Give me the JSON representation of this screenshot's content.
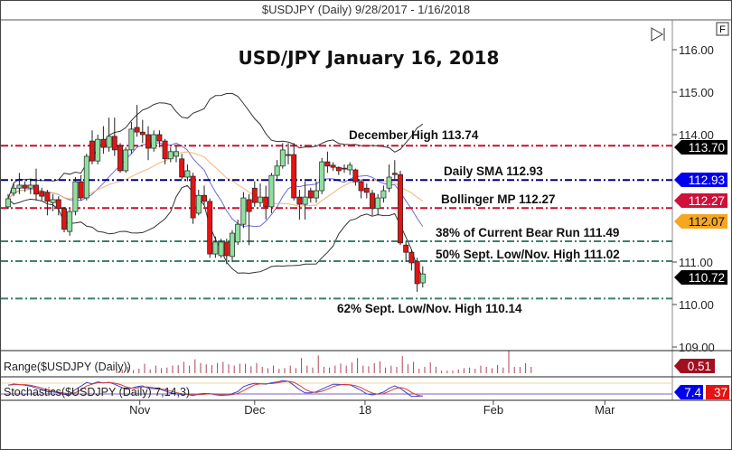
{
  "header": {
    "title": "$USDJPY (Daily)  9/28/2017 - 1/16/2018",
    "f_button": "F"
  },
  "chart_data": {
    "type": "candlestick",
    "title": "USD/JPY January 16, 2018",
    "ohlc": [
      [
        112.3,
        112.6,
        112.25,
        112.49
      ],
      [
        112.62,
        112.85,
        112.55,
        112.74
      ],
      [
        112.74,
        113.1,
        112.6,
        112.81
      ],
      [
        112.81,
        112.9,
        112.65,
        112.74
      ],
      [
        112.74,
        112.95,
        112.6,
        112.81
      ],
      [
        112.81,
        113.2,
        112.45,
        112.6
      ],
      [
        112.66,
        112.75,
        112.45,
        112.55
      ],
      [
        112.64,
        112.7,
        112.1,
        112.43
      ],
      [
        112.4,
        112.6,
        112.2,
        112.47
      ],
      [
        112.47,
        112.55,
        112.1,
        112.26
      ],
      [
        112.26,
        112.3,
        111.7,
        111.77
      ],
      [
        111.72,
        112.25,
        111.62,
        112.19
      ],
      [
        112.19,
        113.0,
        112.1,
        112.89
      ],
      [
        112.89,
        113.05,
        112.45,
        112.51
      ],
      [
        112.51,
        113.55,
        112.45,
        113.49
      ],
      [
        113.85,
        114.1,
        113.3,
        113.38
      ],
      [
        113.38,
        114.0,
        113.3,
        113.89
      ],
      [
        113.89,
        114.2,
        113.55,
        113.7
      ],
      [
        113.7,
        114.4,
        113.6,
        113.96
      ],
      [
        113.96,
        114.4,
        113.5,
        113.64
      ],
      [
        113.74,
        113.8,
        113.1,
        113.15
      ],
      [
        113.15,
        113.7,
        113.1,
        113.64
      ],
      [
        113.64,
        114.3,
        113.55,
        114.13
      ],
      [
        114.17,
        114.7,
        113.95,
        114.06
      ],
      [
        114.06,
        114.35,
        113.8,
        114.0
      ],
      [
        114.0,
        114.2,
        113.4,
        113.68
      ],
      [
        113.68,
        114.1,
        113.6,
        114.0
      ],
      [
        114.0,
        114.1,
        113.7,
        113.85
      ],
      [
        113.85,
        113.9,
        113.3,
        113.43
      ],
      [
        113.43,
        113.7,
        113.35,
        113.6
      ],
      [
        113.49,
        113.75,
        113.35,
        113.6
      ],
      [
        113.43,
        113.55,
        112.95,
        113.0
      ],
      [
        113.0,
        113.3,
        112.9,
        113.15
      ],
      [
        113.02,
        113.1,
        111.9,
        112.04
      ],
      [
        112.15,
        112.7,
        112.1,
        112.57
      ],
      [
        112.57,
        112.8,
        112.35,
        112.43
      ],
      [
        112.43,
        112.5,
        111.1,
        111.19
      ],
      [
        111.19,
        111.6,
        111.1,
        111.47
      ],
      [
        111.15,
        111.55,
        111.1,
        111.47
      ],
      [
        111.47,
        111.55,
        110.95,
        111.15
      ],
      [
        111.13,
        111.75,
        111.0,
        111.68
      ],
      [
        111.47,
        112.0,
        111.4,
        111.89
      ],
      [
        111.89,
        112.65,
        111.8,
        112.51
      ],
      [
        112.47,
        112.6,
        111.4,
        112.19
      ],
      [
        112.74,
        112.9,
        112.3,
        112.4
      ],
      [
        112.4,
        112.85,
        112.3,
        112.53
      ],
      [
        112.53,
        112.8,
        112.0,
        112.3
      ],
      [
        112.3,
        113.1,
        112.15,
        113.04
      ],
      [
        113.04,
        113.4,
        112.95,
        113.26
      ],
      [
        113.26,
        113.8,
        113.2,
        113.64
      ],
      [
        113.53,
        113.8,
        113.3,
        113.51
      ],
      [
        113.53,
        113.8,
        112.45,
        112.51
      ],
      [
        112.53,
        112.7,
        112.0,
        112.36
      ],
      [
        112.36,
        112.9,
        112.0,
        112.53
      ],
      [
        112.68,
        112.75,
        112.4,
        112.51
      ],
      [
        112.51,
        112.9,
        112.4,
        112.68
      ],
      [
        112.68,
        113.45,
        112.6,
        113.36
      ],
      [
        113.36,
        113.6,
        113.1,
        113.26
      ],
      [
        113.28,
        113.35,
        113.15,
        113.23
      ],
      [
        113.23,
        113.25,
        113.05,
        113.15
      ],
      [
        113.21,
        113.3,
        113.1,
        113.19
      ],
      [
        113.17,
        113.35,
        113.05,
        113.28
      ],
      [
        113.17,
        113.2,
        112.8,
        112.89
      ],
      [
        112.89,
        112.95,
        112.5,
        112.68
      ],
      [
        112.74,
        112.85,
        112.5,
        112.64
      ],
      [
        112.62,
        112.7,
        112.1,
        112.26
      ],
      [
        112.26,
        112.6,
        112.1,
        112.51
      ],
      [
        112.51,
        112.8,
        112.4,
        112.68
      ],
      [
        112.74,
        113.3,
        112.65,
        113.0
      ],
      [
        113.09,
        113.4,
        112.95,
        113.06
      ],
      [
        113.06,
        113.15,
        111.4,
        111.45
      ],
      [
        111.4,
        111.5,
        111.0,
        111.23
      ],
      [
        111.23,
        111.3,
        110.8,
        110.98
      ],
      [
        111.02,
        111.1,
        110.3,
        110.49
      ],
      [
        110.51,
        110.9,
        110.4,
        110.72
      ]
    ],
    "ylim": [
      109,
      116.6
    ],
    "y_ticks": [
      "116.00",
      "115.00",
      "114.00",
      "111.00",
      "110.00",
      "109.00"
    ],
    "x_ticks": [
      {
        "label": "Nov",
        "index": 23.5
      },
      {
        "label": "Dec",
        "index": 44
      },
      {
        "label": "18",
        "index": 63.7
      },
      {
        "label": "Feb",
        "index": 86.6
      },
      {
        "label": "Mar",
        "index": 106.5
      }
    ],
    "levels": [
      {
        "label": "December High 113.74",
        "price": 113.74,
        "color": "#c8102e"
      },
      {
        "label": "Daily SMA 112.93",
        "price": 112.93,
        "color": "#000080"
      },
      {
        "label": "Bollinger MP 112.27",
        "price": 112.27,
        "color": "#c8102e"
      },
      {
        "label": "38% of Current Bear Run 111.49",
        "price": 111.49,
        "color": "#3b8070"
      },
      {
        "label": "50% Sept. Low/Nov. High 111.02",
        "price": 111.02,
        "color": "#3b8070"
      },
      {
        "label": "62% Sept. Low/Nov. High 110.14",
        "price": 110.14,
        "color": "#3b8070"
      }
    ],
    "price_tags": [
      {
        "value": "113.70",
        "bg": "#000000",
        "fg": "#ffffff"
      },
      {
        "value": "112.93",
        "bg": "#0000ee",
        "fg": "#ffffff"
      },
      {
        "value": "112.27",
        "bg": "#d0103a",
        "fg": "#ffffff"
      },
      {
        "value": "112.07",
        "bg": "#f5a623",
        "fg": "#111111"
      },
      {
        "value": "110.72",
        "bg": "#000000",
        "fg": "#ffffff"
      }
    ],
    "colors": {
      "up": "#8fe0a0",
      "down": "#e31414",
      "bb": "#333333",
      "ma_fast": "#6a6ad8",
      "ma_slow": "#f0b070"
    },
    "indicators": {
      "range": {
        "label": "Range($USDJPY (Daily))",
        "value": "0.51",
        "color": "#a01020"
      },
      "stochastics": {
        "label": "Stochastics($USDJPY (Daily) 7,14,3)",
        "k_value": "7.4",
        "d_value": "37",
        "k_color": "#0000ee",
        "d_color": "#e31414"
      }
    }
  }
}
